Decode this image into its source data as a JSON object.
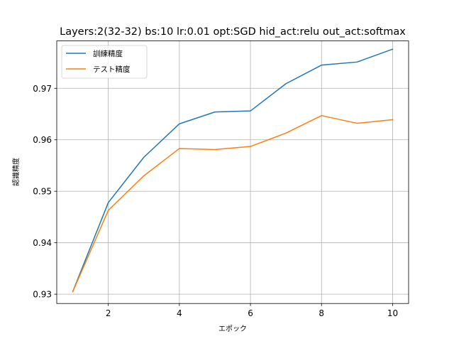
{
  "chart_data": {
    "type": "line",
    "title": "Layers:2(32-32) bs:10 lr:0.01 opt:SGD hid_act:relu out_act:softmax",
    "xlabel": "エポック",
    "ylabel": "認識精度",
    "x": [
      1,
      2,
      3,
      4,
      5,
      6,
      7,
      8,
      9,
      10
    ],
    "xlim": [
      0.55,
      10.45
    ],
    "ylim": [
      0.9282,
      0.9792
    ],
    "xticks": [
      2,
      4,
      6,
      8,
      10
    ],
    "yticks": [
      0.93,
      0.94,
      0.95,
      0.96,
      0.97
    ],
    "xtick_labels": [
      "2",
      "4",
      "6",
      "8",
      "10"
    ],
    "ytick_labels": [
      "0.93",
      "0.94",
      "0.95",
      "0.96",
      "0.97"
    ],
    "grid": true,
    "legend_position": "upper-left",
    "series": [
      {
        "name": "訓練精度",
        "color": "#1f77b4",
        "values": [
          0.9305,
          0.9478,
          0.9566,
          0.9631,
          0.9654,
          0.9656,
          0.9709,
          0.9745,
          0.9751,
          0.9776
        ]
      },
      {
        "name": "テスト精度",
        "color": "#ff7f0e",
        "values": [
          0.9305,
          0.9463,
          0.953,
          0.9583,
          0.9581,
          0.9587,
          0.9613,
          0.9647,
          0.9632,
          0.9639
        ]
      }
    ]
  }
}
